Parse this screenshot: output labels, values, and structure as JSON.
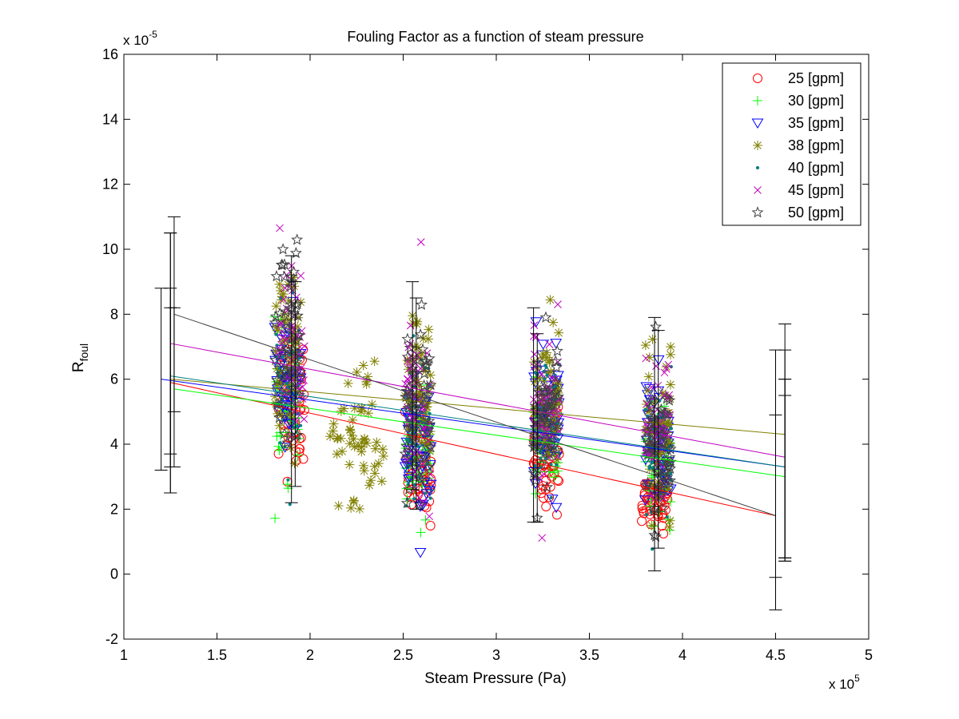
{
  "chart_data": {
    "type": "scatter",
    "title": "Fouling Factor as a function of steam pressure",
    "xlabel": "Steam Pressure (Pa)",
    "ylabel_main": "R",
    "ylabel_sub": "foul",
    "x_exponent_label": "x 10",
    "x_exponent_power": "5",
    "y_exponent_label": "x 10",
    "y_exponent_power": "-5",
    "xlim": [
      1,
      5
    ],
    "ylim": [
      -2,
      16
    ],
    "xticks": [
      1,
      1.5,
      2,
      2.5,
      3,
      3.5,
      4,
      4.5,
      5
    ],
    "xtick_labels": [
      "1",
      "1.5",
      "2",
      "2.5",
      "3",
      "3.5",
      "4",
      "4.5",
      "5"
    ],
    "yticks": [
      -2,
      0,
      2,
      4,
      6,
      8,
      10,
      12,
      14,
      16
    ],
    "ytick_labels": [
      "-2",
      "0",
      "2",
      "4",
      "6",
      "8",
      "10",
      "12",
      "14",
      "16"
    ],
    "grid": false,
    "legend_position": "top-right",
    "x_scale": "x 10^5 Pa",
    "y_scale": "x 10^-5",
    "series": [
      {
        "name": "25 [gpm]",
        "marker": "circle",
        "color": "#ff0000",
        "clusters": [
          {
            "x": 1.9,
            "y_mean": 5.5,
            "y_sd": 1.1
          },
          {
            "x": 2.58,
            "y_mean": 3.3,
            "y_sd": 0.8
          },
          {
            "x": 3.27,
            "y_mean": 3.6,
            "y_sd": 0.8
          },
          {
            "x": 3.85,
            "y_mean": 2.4,
            "y_sd": 0.5
          }
        ],
        "fit": {
          "x": [
            1.25,
            4.5
          ],
          "y": [
            5.9,
            1.8
          ]
        },
        "error_bars": [
          {
            "x": 1.25,
            "low": 3.7,
            "high": 8.2
          },
          {
            "x": 4.5,
            "low": -0.1,
            "high": 4.9
          }
        ]
      },
      {
        "name": "30 [gpm]",
        "marker": "plus",
        "color": "#00ff00",
        "clusters": [
          {
            "x": 1.88,
            "y_mean": 5.2,
            "y_sd": 1.0
          },
          {
            "x": 2.58,
            "y_mean": 3.6,
            "y_sd": 0.8
          },
          {
            "x": 3.27,
            "y_mean": 4.1,
            "y_sd": 0.9
          },
          {
            "x": 3.87,
            "y_mean": 3.4,
            "y_sd": 0.8
          }
        ],
        "fit": {
          "x": [
            1.27,
            4.55
          ],
          "y": [
            5.7,
            3.0
          ]
        },
        "error_bars": [
          {
            "x": 1.27,
            "low": 3.3,
            "high": 8.2
          },
          {
            "x": 4.55,
            "low": 0.5,
            "high": 5.5
          }
        ]
      },
      {
        "name": "35 [gpm]",
        "marker": "triangle-down",
        "color": "#0000ff",
        "clusters": [
          {
            "x": 1.88,
            "y_mean": 6.1,
            "y_sd": 1.2
          },
          {
            "x": 2.58,
            "y_mean": 3.8,
            "y_sd": 1.1
          },
          {
            "x": 3.27,
            "y_mean": 4.7,
            "y_sd": 1.0
          },
          {
            "x": 3.87,
            "y_mean": 4.1,
            "y_sd": 1.0
          }
        ],
        "fit": {
          "x": [
            1.2,
            4.55
          ],
          "y": [
            6.0,
            3.3
          ]
        },
        "error_bars": [
          {
            "x": 1.2,
            "low": 3.2,
            "high": 8.8
          },
          {
            "x": 4.55,
            "low": 0.5,
            "high": 6.0
          }
        ]
      },
      {
        "name": "38 [gpm]",
        "marker": "asterisk",
        "color": "#808000",
        "clusters": [
          {
            "x": 1.88,
            "y_mean": 6.8,
            "y_sd": 1.4
          },
          {
            "x": 2.25,
            "y_mean": 4.0,
            "y_sd": 1.0
          },
          {
            "x": 2.58,
            "y_mean": 5.5,
            "y_sd": 1.3
          },
          {
            "x": 3.27,
            "y_mean": 5.4,
            "y_sd": 1.1
          },
          {
            "x": 3.87,
            "y_mean": 4.7,
            "y_sd": 1.1
          }
        ],
        "fit": {
          "x": [
            1.25,
            4.55
          ],
          "y": [
            6.0,
            4.3
          ]
        },
        "error_bars": [
          {
            "x": 1.25,
            "low": 3.3,
            "high": 8.8
          },
          {
            "x": 4.55,
            "low": 0.4,
            "high": 7.7
          }
        ]
      },
      {
        "name": "40 [gpm]",
        "marker": "dot",
        "color": "#008080",
        "clusters": [
          {
            "x": 1.88,
            "y_mean": 6.2,
            "y_sd": 1.2
          },
          {
            "x": 2.58,
            "y_mean": 4.5,
            "y_sd": 1.2
          },
          {
            "x": 3.27,
            "y_mean": 4.8,
            "y_sd": 1.0
          },
          {
            "x": 3.87,
            "y_mean": 4.0,
            "y_sd": 1.0
          }
        ],
        "fit": {
          "x": [
            1.25,
            4.55
          ],
          "y": [
            6.1,
            3.3
          ]
        },
        "error_bars": [
          {
            "x": 1.25,
            "low": 2.5,
            "high": 10.5
          },
          {
            "x": 4.55,
            "low": 0.5,
            "high": 6.0
          }
        ]
      },
      {
        "name": "45 [gpm]",
        "marker": "cross",
        "color": "#bf00bf",
        "clusters": [
          {
            "x": 1.9,
            "y_mean": 7.0,
            "y_sd": 1.6
          },
          {
            "x": 2.58,
            "y_mean": 5.3,
            "y_sd": 1.4
          },
          {
            "x": 3.27,
            "y_mean": 5.2,
            "y_sd": 1.3
          },
          {
            "x": 3.87,
            "y_mean": 4.4,
            "y_sd": 1.2
          }
        ],
        "fit": {
          "x": [
            1.25,
            4.55
          ],
          "y": [
            7.1,
            3.6
          ]
        },
        "error_bars": [
          {
            "x": 1.25,
            "low": 2.5,
            "high": 10.5
          },
          {
            "x": 4.55,
            "low": 0.4,
            "high": 6.9
          }
        ]
      },
      {
        "name": "50 [gpm]",
        "marker": "star",
        "color": "#404040",
        "clusters": [
          {
            "x": 1.88,
            "y_mean": 7.3,
            "y_sd": 1.5
          },
          {
            "x": 2.58,
            "y_mean": 5.2,
            "y_sd": 1.4
          },
          {
            "x": 3.27,
            "y_mean": 4.6,
            "y_sd": 1.2
          },
          {
            "x": 3.87,
            "y_mean": 3.6,
            "y_sd": 1.2
          }
        ],
        "fit": {
          "x": [
            1.27,
            4.5
          ],
          "y": [
            8.0,
            1.8
          ]
        },
        "error_bars": [
          {
            "x": 1.27,
            "low": 5.0,
            "high": 11.0
          },
          {
            "x": 4.5,
            "low": -1.1,
            "high": 6.9
          }
        ]
      }
    ],
    "extra_error_bars": [
      {
        "x": 1.9,
        "low": 2.2,
        "high": 9.8
      },
      {
        "x": 1.92,
        "low": 2.7,
        "high": 9.0
      },
      {
        "x": 2.55,
        "low": 2.6,
        "high": 9.0
      },
      {
        "x": 2.57,
        "low": 2.0,
        "high": 8.5
      },
      {
        "x": 3.2,
        "low": 1.6,
        "high": 8.2
      },
      {
        "x": 3.22,
        "low": 1.6,
        "high": 7.4
      },
      {
        "x": 3.85,
        "low": 0.1,
        "high": 7.9
      },
      {
        "x": 3.87,
        "low": 0.8,
        "high": 7.5
      }
    ]
  }
}
